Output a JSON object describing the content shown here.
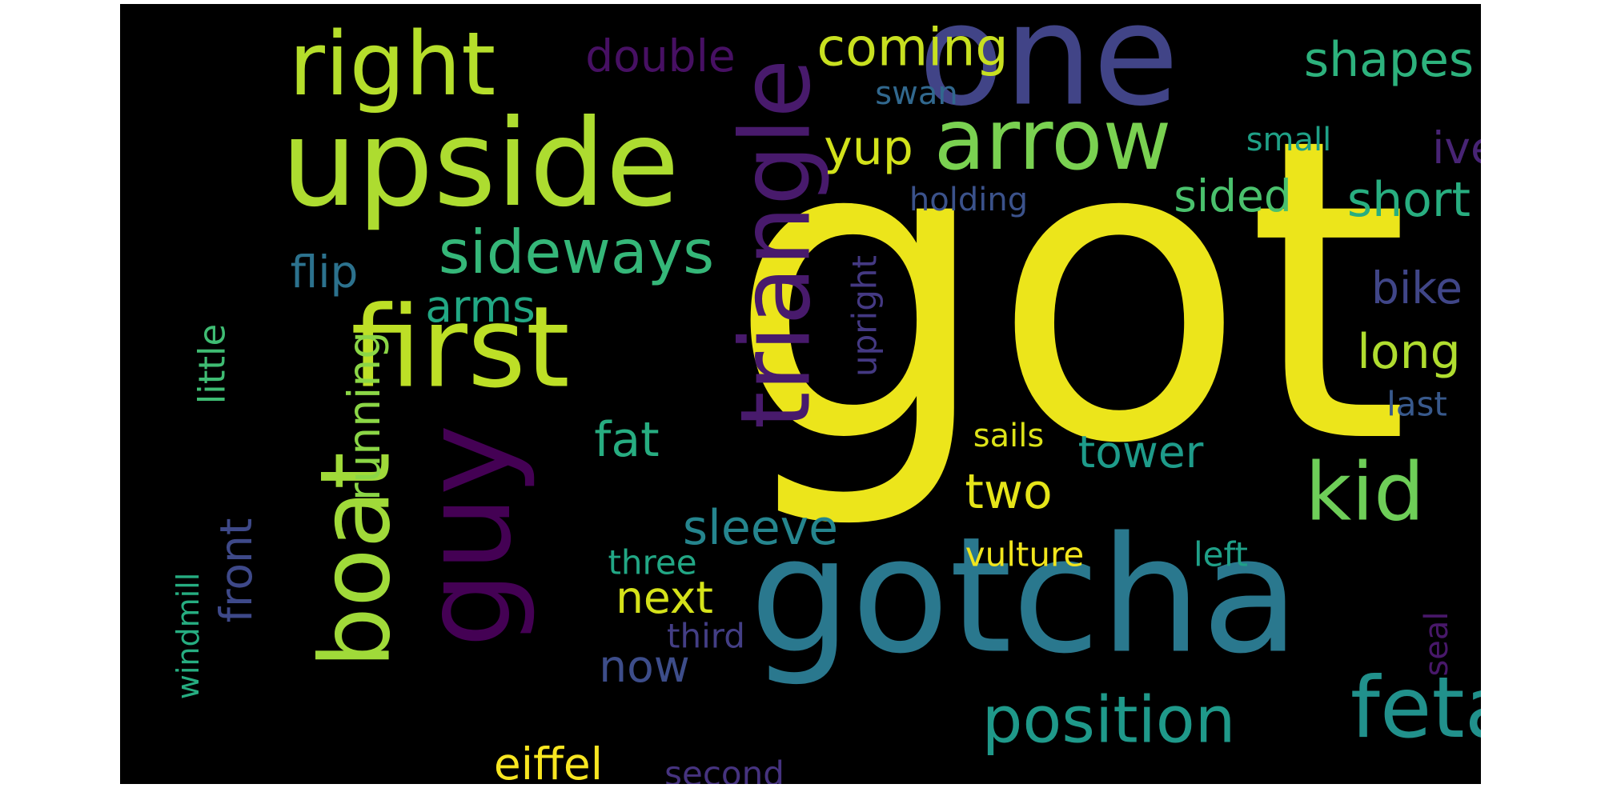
{
  "background_color": "#000000",
  "words": [
    {
      "text": "got",
      "color": "#ece51b"
    },
    {
      "text": "gotcha",
      "color": "#2a788e"
    },
    {
      "text": "one",
      "color": "#414487"
    },
    {
      "text": "upside",
      "color": "#addc30"
    },
    {
      "text": "guy",
      "color": "#440154"
    },
    {
      "text": "first",
      "color": "#bddf26"
    },
    {
      "text": "triangle",
      "color": "#481a6c"
    },
    {
      "text": "arrow",
      "color": "#7ad151"
    },
    {
      "text": "boat",
      "color": "#a0da39"
    },
    {
      "text": "right",
      "color": "#b5de2b"
    },
    {
      "text": "kid",
      "color": "#6ece58"
    },
    {
      "text": "fetal",
      "color": "#21918c"
    },
    {
      "text": "position",
      "color": "#1f998a"
    },
    {
      "text": "sideways",
      "color": "#35b779"
    },
    {
      "text": "coming",
      "color": "#c8e020"
    },
    {
      "text": "shapes",
      "color": "#2db27d"
    },
    {
      "text": "double",
      "color": "#471063"
    },
    {
      "text": "yup",
      "color": "#d2e21b"
    },
    {
      "text": "short",
      "color": "#28ae80"
    },
    {
      "text": "sided",
      "color": "#4ac16d"
    },
    {
      "text": "ive",
      "color": "#482475"
    },
    {
      "text": "small",
      "color": "#1fa187"
    },
    {
      "text": "swan",
      "color": "#31688e"
    },
    {
      "text": "holding",
      "color": "#3b528b"
    },
    {
      "text": "flip",
      "color": "#2c728e"
    },
    {
      "text": "arms",
      "color": "#22a884"
    },
    {
      "text": "bike",
      "color": "#404688"
    },
    {
      "text": "long",
      "color": "#b0dd2f"
    },
    {
      "text": "last",
      "color": "#38598c"
    },
    {
      "text": "upright",
      "color": "#443983"
    },
    {
      "text": "little",
      "color": "#3fbc73"
    },
    {
      "text": "windmill",
      "color": "#26ad81"
    },
    {
      "text": "running",
      "color": "#8bd646"
    },
    {
      "text": "front",
      "color": "#3e4989"
    },
    {
      "text": "fat",
      "color": "#27ad81"
    },
    {
      "text": "sails",
      "color": "#dde318"
    },
    {
      "text": "tower",
      "color": "#1e9b8a"
    },
    {
      "text": "two",
      "color": "#e5e419"
    },
    {
      "text": "sleeve",
      "color": "#25858e"
    },
    {
      "text": "three",
      "color": "#22a785"
    },
    {
      "text": "vulture",
      "color": "#f1e51d"
    },
    {
      "text": "left",
      "color": "#1fa088"
    },
    {
      "text": "next",
      "color": "#d5e21a"
    },
    {
      "text": "third",
      "color": "#433e85"
    },
    {
      "text": "now",
      "color": "#3d4d8a"
    },
    {
      "text": "seal",
      "color": "#48186a"
    },
    {
      "text": "eiffel",
      "color": "#f8e621"
    },
    {
      "text": "second",
      "color": "#46337f"
    }
  ]
}
